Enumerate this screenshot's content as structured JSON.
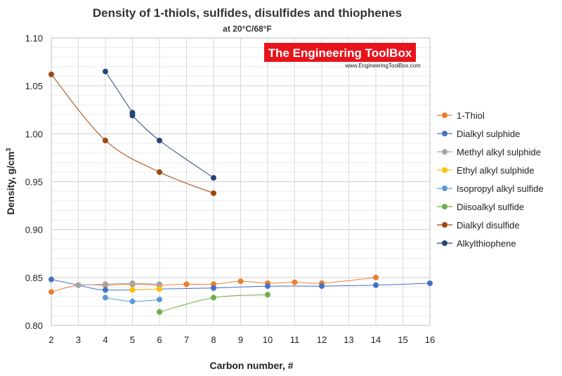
{
  "chart_data": {
    "type": "line",
    "title": "Density of 1-thiols, sulfides, disulfides and thiophenes",
    "subtitle": "at 20°C/68°F",
    "xlabel": "Carbon number, #",
    "ylabel": "Density,  g/cm",
    "ylabel_sup": "3",
    "xlim": [
      2,
      16
    ],
    "ylim": [
      0.8,
      1.1
    ],
    "xticks": [
      2,
      3,
      4,
      5,
      6,
      7,
      8,
      9,
      10,
      11,
      12,
      13,
      14,
      15,
      16
    ],
    "yticks": [
      0.8,
      0.85,
      0.9,
      0.95,
      1.0,
      1.05,
      1.1
    ],
    "ytick_labels": [
      "0.80",
      "0.85",
      "0.90",
      "0.95",
      "1.00",
      "1.05",
      "1.10"
    ],
    "grid": true,
    "legend_position": "right",
    "series": [
      {
        "name": "1-Thiol",
        "color": "#ED7D31",
        "points": [
          [
            2,
            0.835
          ],
          [
            3,
            0.842
          ],
          [
            4,
            0.842
          ],
          [
            5,
            0.843
          ],
          [
            6,
            0.842
          ],
          [
            7,
            0.843
          ],
          [
            8,
            0.843
          ],
          [
            9,
            0.846
          ],
          [
            10,
            0.844
          ],
          [
            11,
            0.845
          ],
          [
            12,
            0.844
          ],
          [
            14,
            0.85
          ]
        ]
      },
      {
        "name": "Dialkyl sulphide",
        "color": "#4472C4",
        "points": [
          [
            2,
            0.848
          ],
          [
            3,
            0.842
          ],
          [
            4,
            0.837
          ],
          [
            6,
            0.838
          ],
          [
            8,
            0.839
          ],
          [
            10,
            0.841
          ],
          [
            12,
            0.841
          ],
          [
            14,
            0.842
          ],
          [
            16,
            0.844
          ]
        ]
      },
      {
        "name": "Methyl alkyl sulphide",
        "color": "#A5A5A5",
        "points": [
          [
            3,
            0.842
          ],
          [
            4,
            0.843
          ],
          [
            5,
            0.844
          ],
          [
            6,
            0.843
          ]
        ]
      },
      {
        "name": "Ethyl alkyl sulphide",
        "color": "#FFC000",
        "points": [
          [
            5,
            0.837
          ],
          [
            6,
            0.838
          ]
        ]
      },
      {
        "name": "Isopropyl alkyl sulfide",
        "color": "#5B9BD5",
        "points": [
          [
            4,
            0.829
          ],
          [
            5,
            0.825
          ],
          [
            6,
            0.827
          ]
        ]
      },
      {
        "name": "Diisoalkyl sulfide",
        "color": "#70AD47",
        "points": [
          [
            6,
            0.814
          ],
          [
            8,
            0.829
          ],
          [
            10,
            0.832
          ]
        ]
      },
      {
        "name": "Dialkyl disulfide",
        "color": "#9E480E",
        "points": [
          [
            2,
            1.062
          ],
          [
            4,
            0.993
          ],
          [
            6,
            0.96
          ],
          [
            8,
            0.938
          ]
        ]
      },
      {
        "name": "Alkylthiophene",
        "color": "#264478",
        "points": [
          [
            4,
            1.065
          ],
          [
            5,
            1.022
          ],
          [
            5,
            1.019
          ],
          [
            6,
            0.993
          ],
          [
            8,
            0.954
          ]
        ]
      }
    ]
  },
  "watermark": {
    "title": "The Engineering ToolBox",
    "url": "www.EngineeringToolBox.com",
    "background": "#E8141B"
  }
}
